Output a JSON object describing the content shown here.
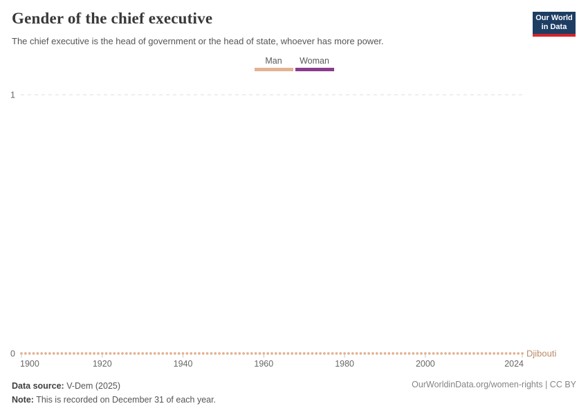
{
  "header": {
    "title": "Gender of the chief executive",
    "subtitle": "The chief executive is the head of government or the head of state, whoever has more power.",
    "logo": {
      "line1": "Our World",
      "line2": "in Data"
    }
  },
  "chart_data": {
    "type": "line",
    "style": "dotted year markers along a flat line",
    "title": "Gender of the chief executive",
    "subtitle": "The chief executive is the head of government or the head of state, whoever has more power.",
    "legend_position": "top-center",
    "grid": "dashed horizontal gridline at y=1 only",
    "x": {
      "start": 1900,
      "end": 2024,
      "step": 1,
      "tick_values": [
        1900,
        1920,
        1940,
        1960,
        1980,
        2000,
        2024
      ],
      "tick_labels": [
        "1900",
        "1920",
        "1940",
        "1960",
        "1980",
        "2000",
        "2024"
      ]
    },
    "y": {
      "min": 0,
      "max": 1,
      "tick_values": [
        0,
        1
      ],
      "tick_labels": [
        "0",
        "1"
      ]
    },
    "categories": [
      {
        "label": "Man",
        "value": 0,
        "color": "#e3b293"
      },
      {
        "label": "Woman",
        "value": 1,
        "color": "#8a3c8c"
      }
    ],
    "series": [
      {
        "name": "Djibouti",
        "all_values": 0,
        "category_for_all_years": "Man",
        "years": "1900–2024 (one point per year, every value = 0 = Man)",
        "point_color": "#e3b293",
        "label_color": "#b98a68"
      }
    ]
  },
  "footer": {
    "source_label": "Data source:",
    "source_value": "V-Dem (2025)",
    "note_label": "Note:",
    "note_value": "This is recorded on December 31 of each year.",
    "link": "OurWorldinData.org/women-rights | CC BY"
  },
  "colors": {
    "man": "#e3b293",
    "woman": "#8a3c8c",
    "entity_label": "#b98a68",
    "gridline": "#dcdcdc",
    "axis_text": "#666666",
    "tick_mark": "#c9c9c9",
    "logo_bg": "#1d3d63",
    "logo_accent": "#d5232b"
  }
}
